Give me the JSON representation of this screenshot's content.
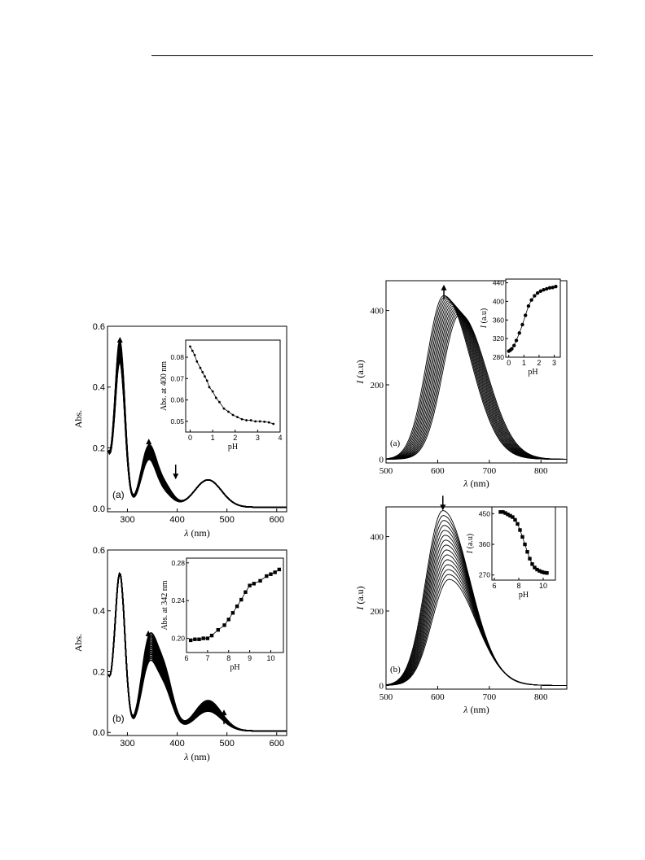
{
  "chart_data": [
    {
      "id": "abs_a",
      "type": "line",
      "panel_label": "(a)",
      "xlabel_var": "λ",
      "xlabel_unit": " (nm)",
      "ylabel": "Abs.",
      "xlim": [
        260,
        620
      ],
      "ylim": [
        -0.01,
        0.6
      ],
      "xticks": [
        300,
        400,
        500,
        600
      ],
      "yticks": [
        0.0,
        0.2,
        0.4,
        0.6
      ],
      "ytick_labels": [
        "0.0",
        "0.2",
        "0.4",
        "0.6"
      ],
      "curves": {
        "count": 15,
        "start": {
          "peak1": 0.46,
          "peak2": 0.145,
          "peak3": 0.09,
          "dip": 0.045
        },
        "end": {
          "peak1": 0.53,
          "peak2": 0.185,
          "peak3": 0.09,
          "dip": 0.072
        }
      },
      "arrows": [
        {
          "x": 285,
          "y": 0.56,
          "dir": "up"
        },
        {
          "x": 343,
          "y": 0.225,
          "dir": "up"
        },
        {
          "x": 397,
          "y": 0.145,
          "dir": "down"
        }
      ],
      "inset": {
        "type": "scatter",
        "xlabel": "pH",
        "ylabel": "Abs. at 400 nm",
        "xlim": [
          -0.2,
          4
        ],
        "ylim": [
          0.045,
          0.088
        ],
        "xticks": [
          0,
          1,
          2,
          3,
          4
        ],
        "yticks": [
          0.05,
          0.06,
          0.07,
          0.08
        ],
        "ytick_labels": [
          "0.05",
          "0.06",
          "0.07",
          "0.08"
        ],
        "x": [
          0.0,
          0.1,
          0.2,
          0.3,
          0.45,
          0.55,
          0.65,
          0.75,
          0.85,
          1.0,
          1.15,
          1.3,
          1.5,
          1.7,
          1.9,
          2.1,
          2.3,
          2.5,
          2.7,
          2.9,
          3.1,
          3.3,
          3.5,
          3.7
        ],
        "y": [
          0.085,
          0.083,
          0.081,
          0.078,
          0.075,
          0.073,
          0.071,
          0.069,
          0.066,
          0.064,
          0.061,
          0.059,
          0.056,
          0.0545,
          0.053,
          0.052,
          0.051,
          0.0505,
          0.0505,
          0.05,
          0.05,
          0.0498,
          0.0495,
          0.0488
        ]
      }
    },
    {
      "id": "abs_b",
      "type": "line",
      "panel_label": "(b)",
      "xlabel_var": "λ",
      "xlabel_unit": " (nm)",
      "ylabel": "Abs.",
      "xlim": [
        260,
        620
      ],
      "ylim": [
        -0.01,
        0.6
      ],
      "xticks": [
        300,
        400,
        500,
        600
      ],
      "yticks": [
        0.0,
        0.2,
        0.4,
        0.6
      ],
      "ytick_labels": [
        "0.0",
        "0.2",
        "0.4",
        "0.6"
      ],
      "curves": {
        "count": 15,
        "start": {
          "peak1": 0.5,
          "peak2": 0.19,
          "peak3": 0.065,
          "dip": 0.14
        },
        "end": {
          "peak1": 0.5,
          "peak2": 0.26,
          "peak3": 0.1,
          "dip": 0.2
        }
      },
      "arrows": [
        {
          "x": 342,
          "y": 0.33,
          "dir": "up"
        },
        {
          "x": 494,
          "y": 0.07,
          "dir": "up"
        }
      ],
      "inset": {
        "type": "scatter",
        "xlabel": "pH",
        "ylabel": "Abs. at 342 nm",
        "xlim": [
          6,
          10.6
        ],
        "ylim": [
          0.185,
          0.285
        ],
        "xticks": [
          6,
          7,
          8,
          9,
          10
        ],
        "yticks": [
          0.2,
          0.24,
          0.28
        ],
        "ytick_labels": [
          "0.20",
          "0.24",
          "0.28"
        ],
        "x": [
          6.2,
          6.4,
          6.6,
          6.8,
          7.0,
          7.2,
          7.5,
          7.8,
          8.0,
          8.2,
          8.4,
          8.6,
          8.8,
          9.0,
          9.2,
          9.5,
          9.8,
          10.0,
          10.2,
          10.4
        ],
        "y": [
          0.198,
          0.199,
          0.199,
          0.2,
          0.2,
          0.203,
          0.209,
          0.214,
          0.22,
          0.227,
          0.234,
          0.241,
          0.249,
          0.256,
          0.258,
          0.261,
          0.266,
          0.268,
          0.27,
          0.273
        ]
      }
    },
    {
      "id": "em_a",
      "type": "line",
      "panel_label": "(a)",
      "xlabel_var": "λ",
      "xlabel_unit": " (nm)",
      "ylabel_var": "I",
      "ylabel_unit": " (a.u)",
      "xlim": [
        500,
        850
      ],
      "ylim": [
        -10,
        480
      ],
      "xticks": [
        500,
        600,
        700,
        800
      ],
      "yticks": [
        0,
        200,
        400
      ],
      "ytick_labels": [
        "0",
        "200",
        "400"
      ],
      "curves": {
        "count": 15,
        "start": {
          "center": 643,
          "amp": 390
        },
        "end": {
          "center": 612,
          "amp": 440
        }
      },
      "arrows": [
        {
          "x": 612,
          "y": 465,
          "dir": "up"
        }
      ],
      "inset": {
        "type": "scatter",
        "xlabel": "pH",
        "ylabel_var": "I",
        "ylabel_unit": " (a.u)",
        "xlim": [
          -0.2,
          3.4
        ],
        "ylim": [
          280,
          448
        ],
        "xticks": [
          0,
          1,
          2,
          3
        ],
        "yticks": [
          280,
          320,
          360,
          400,
          440
        ],
        "ytick_labels": [
          "280",
          "320",
          "360",
          "400",
          "440"
        ],
        "x": [
          0.0,
          0.1,
          0.2,
          0.35,
          0.5,
          0.7,
          0.9,
          1.1,
          1.3,
          1.5,
          1.7,
          1.9,
          2.1,
          2.3,
          2.5,
          2.7,
          2.9,
          3.1
        ],
        "y": [
          293,
          295,
          298,
          305,
          316,
          332,
          350,
          370,
          390,
          403,
          412,
          418,
          422,
          425,
          427,
          429,
          430,
          432
        ]
      }
    },
    {
      "id": "em_b",
      "type": "line",
      "panel_label": "(b)",
      "xlabel_var": "λ",
      "xlabel_unit": " (nm)",
      "ylabel_var": "I",
      "ylabel_unit": " (a.u)",
      "xlim": [
        500,
        850
      ],
      "ylim": [
        -10,
        480
      ],
      "xticks": [
        500,
        600,
        700,
        800
      ],
      "yticks": [
        0,
        200,
        400
      ],
      "ytick_labels": [
        "0",
        "200",
        "400"
      ],
      "curves": {
        "count": 15,
        "start": {
          "center": 610,
          "amp": 470
        },
        "end": {
          "center": 622,
          "amp": 285
        }
      },
      "arrows": [
        {
          "x": 610,
          "y": 510,
          "dir": "down"
        }
      ],
      "inset": {
        "type": "scatter",
        "xlabel": "pH",
        "ylabel_var": "I",
        "ylabel_unit": " (a.u)",
        "xlim": [
          5.8,
          11
        ],
        "ylim": [
          255,
          470
        ],
        "xticks": [
          6,
          8,
          10
        ],
        "yticks": [
          270,
          360,
          450
        ],
        "ytick_labels": [
          "270",
          "360",
          "450"
        ],
        "x": [
          6.5,
          6.7,
          6.9,
          7.1,
          7.3,
          7.5,
          7.7,
          7.9,
          8.1,
          8.3,
          8.5,
          8.7,
          8.9,
          9.1,
          9.3,
          9.5,
          9.7,
          9.9,
          10.1,
          10.3
        ],
        "y": [
          455,
          455,
          452,
          448,
          444,
          440,
          432,
          420,
          402,
          382,
          360,
          338,
          318,
          302,
          292,
          286,
          282,
          279,
          277,
          276
        ]
      }
    }
  ]
}
